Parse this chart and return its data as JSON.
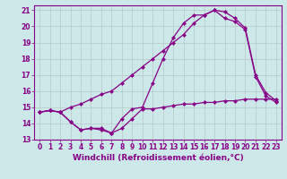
{
  "x": [
    0,
    1,
    2,
    3,
    4,
    5,
    6,
    7,
    8,
    9,
    10,
    11,
    12,
    13,
    14,
    15,
    16,
    17,
    18,
    19,
    20,
    21,
    22,
    23
  ],
  "line1": [
    14.7,
    14.8,
    14.7,
    14.1,
    13.6,
    13.7,
    13.6,
    13.4,
    13.7,
    14.3,
    14.9,
    14.9,
    15.0,
    15.1,
    15.2,
    15.2,
    15.3,
    15.3,
    15.4,
    15.4,
    15.5,
    15.5,
    15.5,
    15.5
  ],
  "line2": [
    14.7,
    14.8,
    14.7,
    14.1,
    13.6,
    13.7,
    13.7,
    13.4,
    14.3,
    14.9,
    15.0,
    16.5,
    18.0,
    19.3,
    20.2,
    20.7,
    20.7,
    21.0,
    20.9,
    20.5,
    19.9,
    17.0,
    15.9,
    15.4
  ],
  "line3": [
    14.7,
    14.8,
    14.7,
    15.0,
    15.2,
    15.5,
    15.8,
    16.0,
    16.5,
    17.0,
    17.5,
    18.0,
    18.5,
    19.0,
    19.5,
    20.2,
    20.7,
    21.0,
    20.5,
    20.3,
    19.8,
    16.9,
    15.7,
    15.3
  ],
  "bg_color": "#cce8e8",
  "grid_color": "#b8c8c8",
  "line_color": "#880088",
  "marker": "D",
  "markersize": 2.5,
  "linewidth": 0.9,
  "xlim": [
    -0.5,
    23.5
  ],
  "ylim": [
    13,
    21.3
  ],
  "yticks": [
    13,
    14,
    15,
    16,
    17,
    18,
    19,
    20,
    21
  ],
  "xticks": [
    0,
    1,
    2,
    3,
    4,
    5,
    6,
    7,
    8,
    9,
    10,
    11,
    12,
    13,
    14,
    15,
    16,
    17,
    18,
    19,
    20,
    21,
    22,
    23
  ],
  "xlabel": "Windchill (Refroidissement éolien,°C)",
  "xlabel_fontsize": 6.5,
  "tick_fontsize": 5.5
}
